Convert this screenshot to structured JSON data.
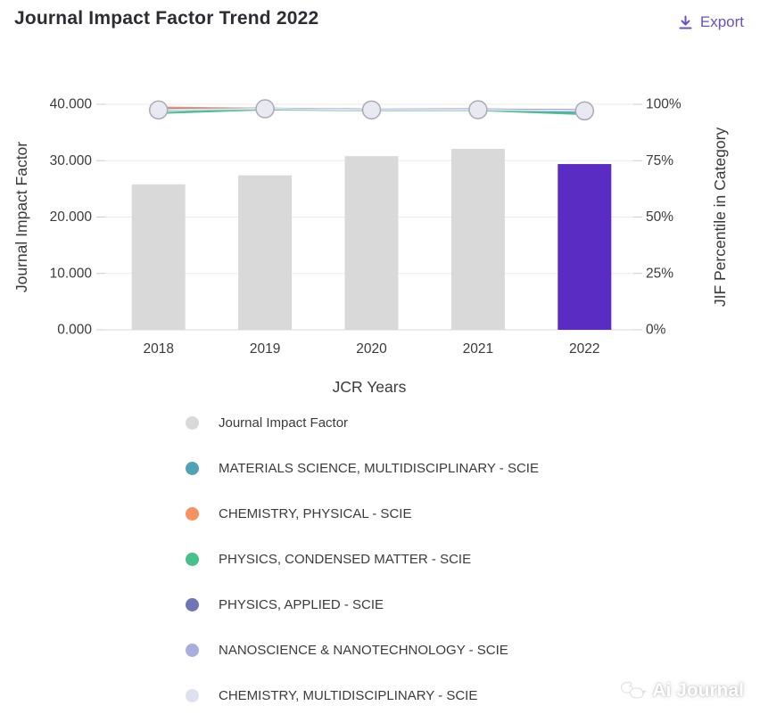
{
  "header": {
    "title": "Journal Impact Factor Trend 2022",
    "export_label": "Export",
    "export_icon": "download-icon",
    "accent_color": "#6a4fc6"
  },
  "chart_data": {
    "type": "bar",
    "title": "Journal Impact Factor Trend 2022",
    "categories": [
      "2018",
      "2019",
      "2020",
      "2021",
      "2022"
    ],
    "xlabel": "JCR Years",
    "left_axis": {
      "label": "Journal Impact Factor",
      "ticks": [
        "40.000",
        "30.000",
        "20.000",
        "10.000",
        "0.000"
      ],
      "min": 0,
      "max": 40
    },
    "right_axis": {
      "label": "JIF Percentile in Category",
      "ticks": [
        "100%",
        "75%",
        "50%",
        "25%",
        "0%"
      ],
      "min": 0,
      "max": 100
    },
    "bars": {
      "name": "Journal Impact Factor",
      "values": [
        25.8,
        27.4,
        30.8,
        32.1,
        29.4
      ],
      "default_color": "#d9d9d9",
      "highlight_color": "#5b2cc4",
      "highlight_category": "2022"
    },
    "series": [
      {
        "name": "MATERIALS SCIENCE, MULTIDISCIPLINARY - SCIE",
        "color": "#4fa3b5",
        "values": [
          97.3,
          97.9,
          97.5,
          97.5,
          96.4
        ]
      },
      {
        "name": "CHEMISTRY, PHYSICAL - SCIE",
        "color": "#f5925f",
        "values": [
          98.6,
          98.1,
          97.6,
          97.7,
          97.3
        ]
      },
      {
        "name": "PHYSICS, CONDENSED MATTER - SCIE",
        "color": "#47c08b",
        "values": [
          96.1,
          97.7,
          97.3,
          97.4,
          95.6
        ]
      },
      {
        "name": "PHYSICS, APPLIED - SCIE",
        "color": "#6f76b8",
        "values": [
          97.8,
          98.1,
          97.7,
          97.8,
          97.4
        ]
      },
      {
        "name": "NANOSCIENCE & NANOTECHNOLOGY - SCIE",
        "color": "#a9aedd",
        "values": [
          97.6,
          98.0,
          97.6,
          97.6,
          97.2
        ]
      },
      {
        "name": "CHEMISTRY, MULTIDISCIPLINARY - SCIE",
        "color": "#dfe1ee",
        "values": [
          97.5,
          98.0,
          97.5,
          97.6,
          97.1
        ]
      }
    ],
    "marker": {
      "fill": "#e9e9f2",
      "stroke": "#a9a9ba"
    },
    "grid": true,
    "legend_position": "bottom"
  },
  "legend": {
    "items": [
      {
        "label": "Journal Impact Factor",
        "color": "#d9d9d9"
      },
      {
        "label": "MATERIALS SCIENCE, MULTIDISCIPLINARY - SCIE",
        "color": "#4fa3b5"
      },
      {
        "label": "CHEMISTRY, PHYSICAL - SCIE",
        "color": "#f5925f"
      },
      {
        "label": "PHYSICS, CONDENSED MATTER - SCIE",
        "color": "#47c08b"
      },
      {
        "label": "PHYSICS, APPLIED - SCIE",
        "color": "#6f76b8"
      },
      {
        "label": "NANOSCIENCE & NANOTECHNOLOGY - SCIE",
        "color": "#a9aedd"
      },
      {
        "label": "CHEMISTRY, MULTIDISCIPLINARY - SCIE",
        "color": "#dfe1ee"
      }
    ]
  },
  "watermark": {
    "text": "Ai Journal"
  }
}
